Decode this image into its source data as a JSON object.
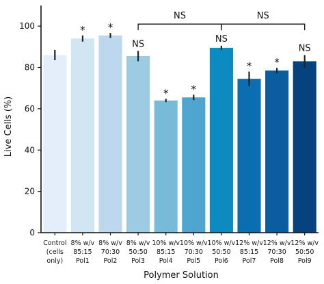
{
  "chart_data": {
    "type": "bar",
    "title": "",
    "xlabel": "Polymer Solution",
    "ylabel": "Live Cells (%)",
    "ylim": [
      0,
      110
    ],
    "yticks": [
      0,
      20,
      40,
      60,
      80,
      100
    ],
    "grid": false,
    "categories": [
      {
        "lines": [
          "Control",
          "(cells",
          "only)"
        ],
        "value": 86,
        "error": 2.5,
        "annotation": "",
        "color": "#e3eef8"
      },
      {
        "lines": [
          "8% w/v",
          "85:15",
          "Pol1"
        ],
        "value": 94,
        "error": 1.5,
        "annotation": "*",
        "color": "#d2e5f3"
      },
      {
        "lines": [
          "8% w/v",
          "70:30",
          "Pol2"
        ],
        "value": 95.5,
        "error": 1.2,
        "annotation": "*",
        "color": "#bdd8ec"
      },
      {
        "lines": [
          "8% w/v",
          "50:50",
          "Pol3"
        ],
        "value": 85.5,
        "error": 2.5,
        "annotation": "NS",
        "color": "#9ccbe2"
      },
      {
        "lines": [
          "10% w/v",
          "85:15",
          "Pol4"
        ],
        "value": 64,
        "error": 0.8,
        "annotation": "*",
        "color": "#78bbd9"
      },
      {
        "lines": [
          "10% w/v",
          "70:30",
          "Pol5"
        ],
        "value": 65.5,
        "error": 1.3,
        "annotation": "*",
        "color": "#4ea5cf"
      },
      {
        "lines": [
          "10% w/v",
          "50:50",
          "Pol6"
        ],
        "value": 89.5,
        "error": 1.0,
        "annotation": "NS",
        "color": "#0b8bc0"
      },
      {
        "lines": [
          "12% w/v",
          "85:15",
          "Pol7"
        ],
        "value": 74.5,
        "error": 3.5,
        "annotation": "*",
        "color": "#0a6eb0"
      },
      {
        "lines": [
          "12% w/v",
          "70:30",
          "Pol8"
        ],
        "value": 78.5,
        "error": 1.3,
        "annotation": "*",
        "color": "#0a5ea0"
      },
      {
        "lines": [
          "12% w/v",
          "50:50",
          "Pol9"
        ],
        "value": 83,
        "error": 3.0,
        "annotation": "NS",
        "color": "#06427d"
      }
    ],
    "brackets": [
      {
        "from": 3,
        "to": 6,
        "label": "NS"
      },
      {
        "from": 6,
        "to": 9,
        "label": "NS"
      }
    ]
  }
}
